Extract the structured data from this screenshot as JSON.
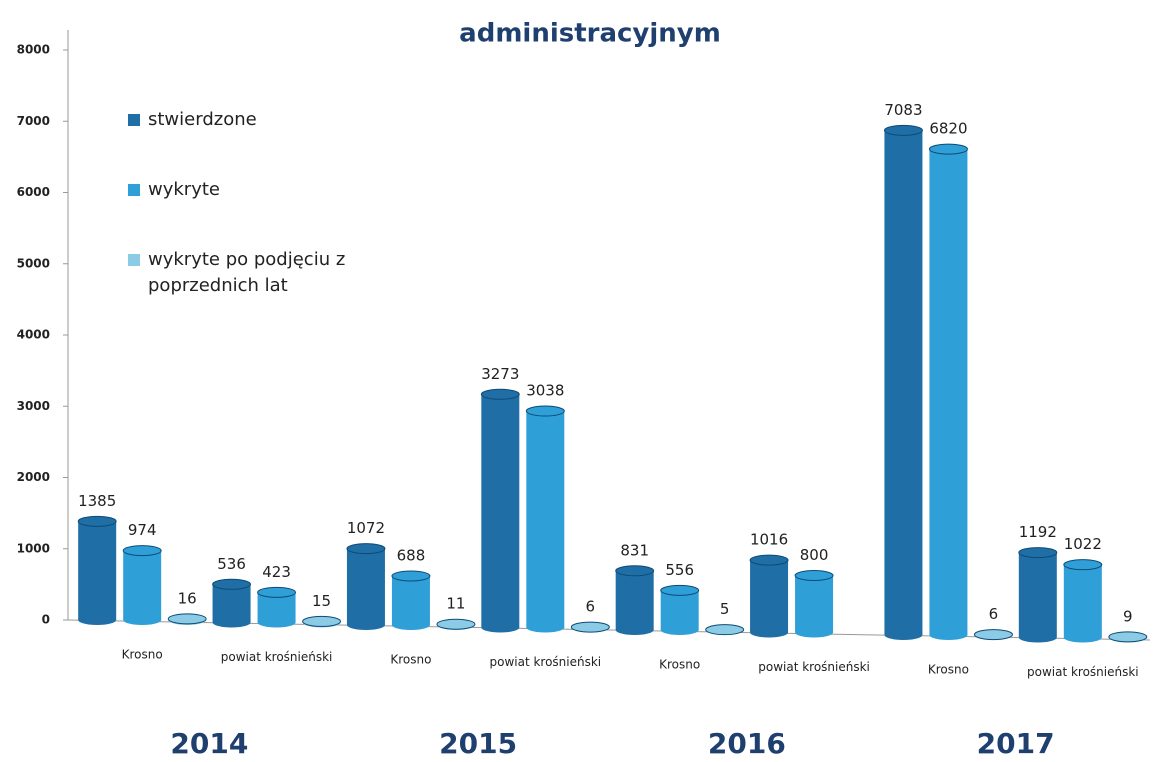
{
  "chart_data": {
    "type": "bar",
    "title": "administracyjnym",
    "categories": [
      "Krosno",
      "powiat krośnieński",
      "Krosno",
      "powiat krośnieński",
      "Krosno",
      "powiat krośnieński",
      "Krosno",
      "powiat krośnieński"
    ],
    "groups": [
      "2014",
      "2015",
      "2016",
      "2017"
    ],
    "series": [
      {
        "name": "stwierdzone",
        "color": "#1f6ea6",
        "values": [
          1385,
          536,
          1072,
          3273,
          831,
          1016,
          7083,
          1192
        ]
      },
      {
        "name": "wykryte",
        "color": "#2f9fd8",
        "values": [
          974,
          423,
          688,
          3038,
          556,
          800,
          6820,
          1022
        ]
      },
      {
        "name": "wykryte po podjęciu z poprzednich lat",
        "color": "#8ccbe6",
        "values": [
          16,
          15,
          11,
          6,
          5,
          null,
          6,
          9
        ]
      }
    ],
    "ylim": [
      0,
      8000
    ],
    "yticks": [
      0,
      1000,
      2000,
      3000,
      4000,
      5000,
      6000,
      7000,
      8000
    ],
    "legend": "top-left"
  }
}
